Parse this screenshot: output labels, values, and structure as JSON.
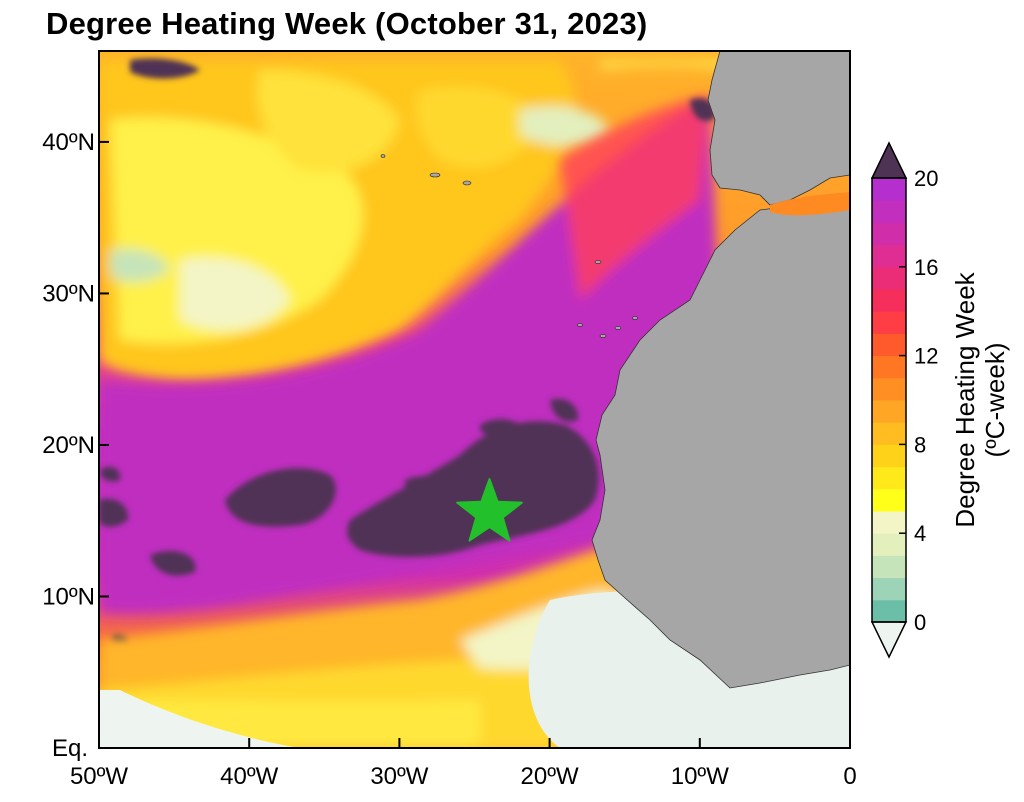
{
  "title": "Degree Heating Week (October 31, 2023)",
  "map": {
    "region": "Eastern tropical North Atlantic / West Africa",
    "lon_range": [
      -50,
      0
    ],
    "lat_range": [
      0,
      46
    ],
    "lat_ticks": [
      {
        "value": 40,
        "label": "40ºN"
      },
      {
        "value": 30,
        "label": "30ºN"
      },
      {
        "value": 20,
        "label": "20ºN"
      },
      {
        "value": 10,
        "label": "10ºN"
      },
      {
        "value": 0,
        "label": "Eq."
      }
    ],
    "lon_ticks": [
      {
        "value": -50,
        "label": "50ºW"
      },
      {
        "value": -40,
        "label": "40ºW"
      },
      {
        "value": -30,
        "label": "30ºW"
      },
      {
        "value": -20,
        "label": "20ºW"
      },
      {
        "value": -10,
        "label": "10ºW"
      },
      {
        "value": 0,
        "label": "0"
      }
    ],
    "marker": {
      "type": "star",
      "color": "#22c02a",
      "lon": -24.0,
      "lat": 15.5
    },
    "land_color": "#a6a6a6"
  },
  "colorbar": {
    "title_line1": "Degree Heating Week",
    "title_line2": "(ºC-week)",
    "ticks": [
      "20",
      "16",
      "12",
      "8",
      "4",
      "0"
    ],
    "range": [
      0,
      20
    ],
    "colors": [
      "#6bbfa8",
      "#9dd3b7",
      "#c6e4b9",
      "#e3efbd",
      "#f3f5c6",
      "#ffff1a",
      "#ffe91a",
      "#ffd21a",
      "#ffbd22",
      "#ffa624",
      "#ff8f22",
      "#ff7722",
      "#ff5a2c",
      "#ff3d45",
      "#f52e5c",
      "#eb2d78",
      "#df2d93",
      "#d02daa",
      "#c22fbf",
      "#b42fce"
    ],
    "over_color": "#4f3355",
    "under_color": "#eef4ef"
  }
}
